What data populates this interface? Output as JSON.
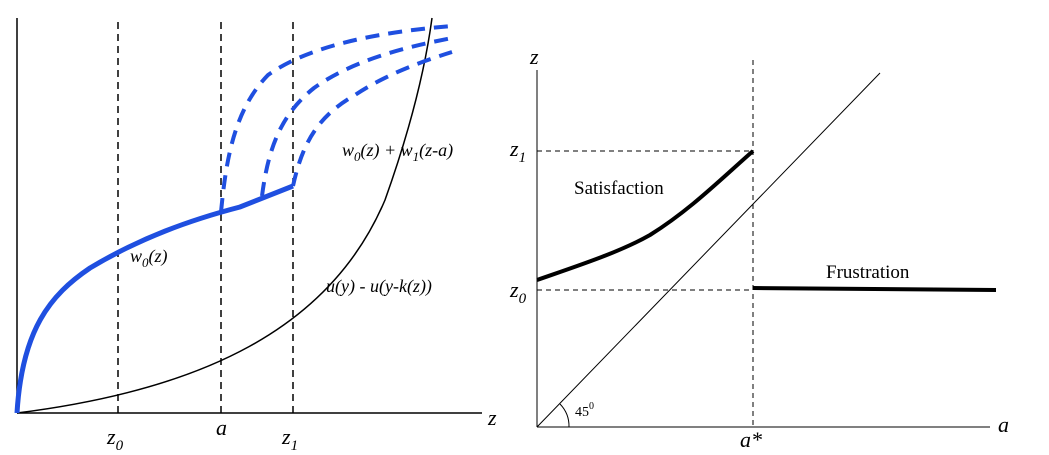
{
  "left_panel": {
    "axis_x_label": "z",
    "ticks": {
      "z0": {
        "base": "z",
        "sub": "0"
      },
      "a": "a",
      "z1": {
        "base": "z",
        "sub": "1"
      }
    },
    "curve_w0_label": {
      "base": "w",
      "sub": "0",
      "arg": "(z)"
    },
    "curve_sum_label": {
      "p1": "w",
      "s1": "0",
      "p2": "(z) + w",
      "s2": "1",
      "p3": "(z-a)"
    },
    "curve_u_label": "u(y) - u(y-k(z))",
    "colors": {
      "highlight": "#1f4fe0",
      "ink": "#000000"
    }
  },
  "right_panel": {
    "axis_x_label": "a",
    "axis_y_label": "z",
    "tick_z1": {
      "base": "z",
      "sub": "1"
    },
    "tick_z0": {
      "base": "z",
      "sub": "0"
    },
    "tick_astar": "a*",
    "angle_label": {
      "base": "45",
      "sup": "0"
    },
    "region_satisfaction": "Satisfaction",
    "region_frustration": "Frustration"
  }
}
